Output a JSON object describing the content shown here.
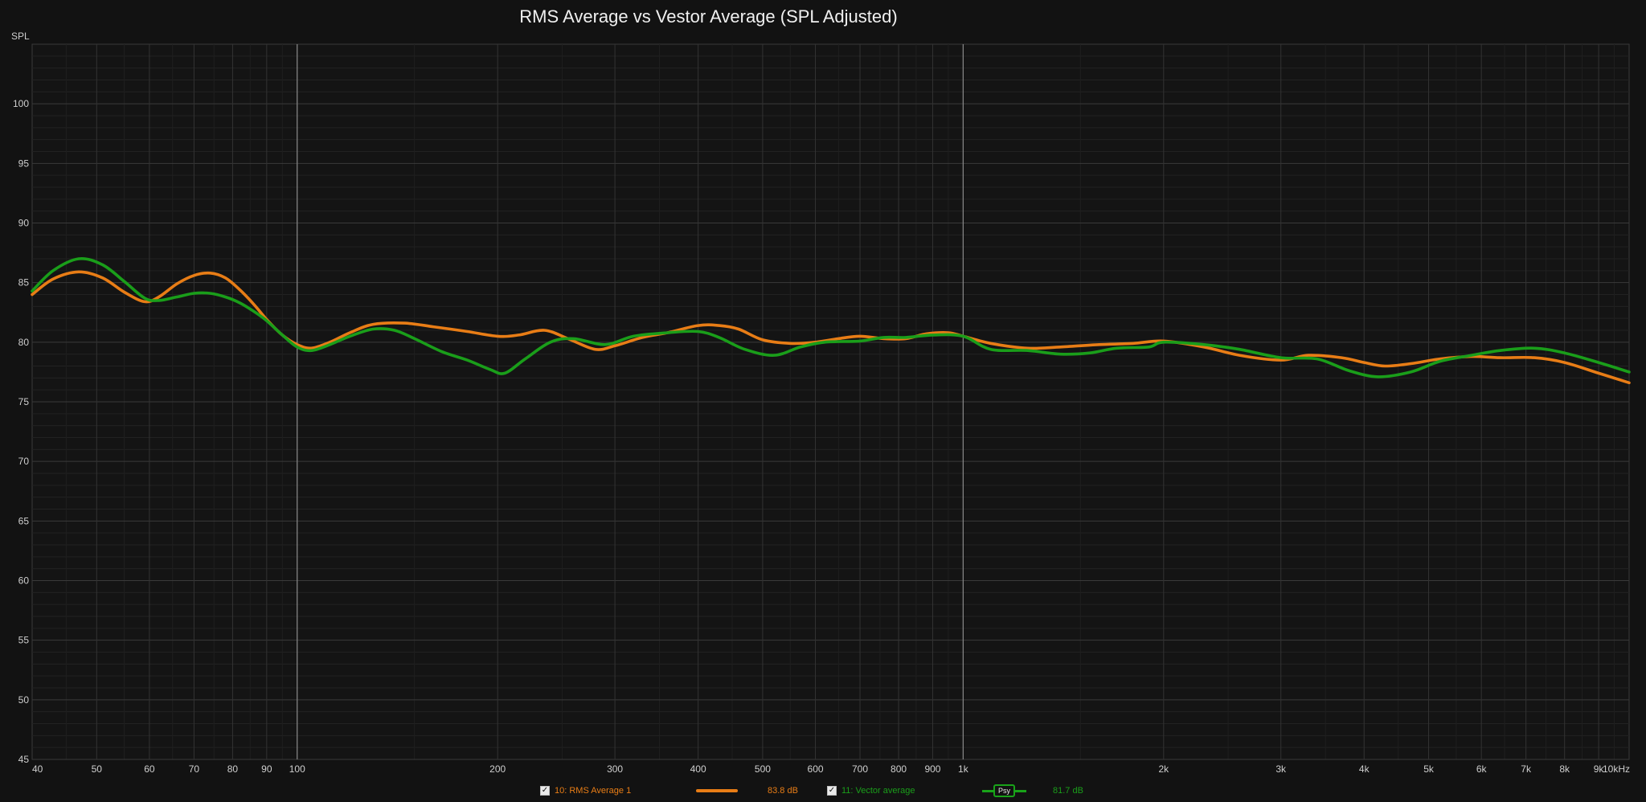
{
  "chart_data": {
    "type": "line",
    "title": "RMS Average vs Vestor Average (SPL Adjusted)",
    "ylabel": "SPL",
    "xscale": "log",
    "xlim": [
      40,
      10000
    ],
    "ylim": [
      45,
      105
    ],
    "grid": true,
    "yticks": [
      100,
      95,
      90,
      85,
      80,
      75,
      70,
      65,
      60,
      55,
      50,
      45
    ],
    "xticks": [
      {
        "v": 40,
        "label": "40"
      },
      {
        "v": 50,
        "label": "50"
      },
      {
        "v": 60,
        "label": "60"
      },
      {
        "v": 70,
        "label": "70"
      },
      {
        "v": 80,
        "label": "80"
      },
      {
        "v": 90,
        "label": "90"
      },
      {
        "v": 100,
        "label": "100"
      },
      {
        "v": 200,
        "label": "200"
      },
      {
        "v": 300,
        "label": "300"
      },
      {
        "v": 400,
        "label": "400"
      },
      {
        "v": 500,
        "label": "500"
      },
      {
        "v": 600,
        "label": "600"
      },
      {
        "v": 700,
        "label": "700"
      },
      {
        "v": 800,
        "label": "800"
      },
      {
        "v": 900,
        "label": "900"
      },
      {
        "v": 1000,
        "label": "1k"
      },
      {
        "v": 2000,
        "label": "2k"
      },
      {
        "v": 3000,
        "label": "3k"
      },
      {
        "v": 4000,
        "label": "4k"
      },
      {
        "v": 5000,
        "label": "5k"
      },
      {
        "v": 6000,
        "label": "6k"
      },
      {
        "v": 7000,
        "label": "7k"
      },
      {
        "v": 8000,
        "label": "8k"
      },
      {
        "v": 9000,
        "label": "9k"
      },
      {
        "v": 10000,
        "label": "10kHz"
      }
    ],
    "series": [
      {
        "name": "10: RMS Average 1",
        "color": "#e87d16",
        "points": [
          [
            40,
            84.0
          ],
          [
            43,
            85.3
          ],
          [
            47,
            85.9
          ],
          [
            51,
            85.4
          ],
          [
            55,
            84.2
          ],
          [
            59,
            83.4
          ],
          [
            62,
            83.8
          ],
          [
            66,
            84.9
          ],
          [
            70,
            85.6
          ],
          [
            74,
            85.8
          ],
          [
            78,
            85.4
          ],
          [
            82,
            84.4
          ],
          [
            86,
            83.2
          ],
          [
            90,
            81.9
          ],
          [
            95,
            80.6
          ],
          [
            100,
            79.8
          ],
          [
            105,
            79.5
          ],
          [
            112,
            80.0
          ],
          [
            120,
            80.8
          ],
          [
            130,
            81.5
          ],
          [
            145,
            81.6
          ],
          [
            160,
            81.3
          ],
          [
            180,
            80.9
          ],
          [
            200,
            80.5
          ],
          [
            215,
            80.6
          ],
          [
            235,
            81.0
          ],
          [
            255,
            80.3
          ],
          [
            280,
            79.4
          ],
          [
            300,
            79.7
          ],
          [
            330,
            80.4
          ],
          [
            360,
            80.8
          ],
          [
            400,
            81.4
          ],
          [
            430,
            81.4
          ],
          [
            460,
            81.1
          ],
          [
            500,
            80.2
          ],
          [
            550,
            79.9
          ],
          [
            600,
            80.0
          ],
          [
            650,
            80.3
          ],
          [
            700,
            80.5
          ],
          [
            760,
            80.3
          ],
          [
            820,
            80.3
          ],
          [
            880,
            80.7
          ],
          [
            950,
            80.8
          ],
          [
            1000,
            80.5
          ],
          [
            1100,
            79.9
          ],
          [
            1250,
            79.5
          ],
          [
            1400,
            79.6
          ],
          [
            1600,
            79.8
          ],
          [
            1800,
            79.9
          ],
          [
            2000,
            80.1
          ],
          [
            2300,
            79.6
          ],
          [
            2600,
            78.9
          ],
          [
            3000,
            78.5
          ],
          [
            3300,
            78.9
          ],
          [
            3700,
            78.7
          ],
          [
            4000,
            78.3
          ],
          [
            4300,
            78.0
          ],
          [
            4700,
            78.2
          ],
          [
            5200,
            78.6
          ],
          [
            5800,
            78.8
          ],
          [
            6400,
            78.7
          ],
          [
            7200,
            78.7
          ],
          [
            8000,
            78.3
          ],
          [
            9000,
            77.4
          ],
          [
            10000,
            76.6
          ]
        ]
      },
      {
        "name": "11: Vector average",
        "color": "#1a9e1a",
        "points": [
          [
            40,
            84.3
          ],
          [
            43,
            86.0
          ],
          [
            47,
            87.0
          ],
          [
            51,
            86.5
          ],
          [
            55,
            85.1
          ],
          [
            59,
            83.7
          ],
          [
            62,
            83.5
          ],
          [
            66,
            83.8
          ],
          [
            70,
            84.1
          ],
          [
            74,
            84.1
          ],
          [
            78,
            83.8
          ],
          [
            82,
            83.3
          ],
          [
            86,
            82.6
          ],
          [
            90,
            81.8
          ],
          [
            95,
            80.6
          ],
          [
            100,
            79.6
          ],
          [
            105,
            79.3
          ],
          [
            112,
            79.8
          ],
          [
            120,
            80.5
          ],
          [
            130,
            81.1
          ],
          [
            140,
            81.0
          ],
          [
            150,
            80.3
          ],
          [
            165,
            79.2
          ],
          [
            180,
            78.5
          ],
          [
            195,
            77.7
          ],
          [
            205,
            77.4
          ],
          [
            220,
            78.6
          ],
          [
            240,
            80.0
          ],
          [
            260,
            80.3
          ],
          [
            290,
            79.8
          ],
          [
            320,
            80.5
          ],
          [
            360,
            80.8
          ],
          [
            400,
            80.9
          ],
          [
            430,
            80.4
          ],
          [
            470,
            79.4
          ],
          [
            520,
            78.9
          ],
          [
            570,
            79.6
          ],
          [
            620,
            80.0
          ],
          [
            700,
            80.1
          ],
          [
            760,
            80.4
          ],
          [
            820,
            80.4
          ],
          [
            900,
            80.6
          ],
          [
            1000,
            80.5
          ],
          [
            1100,
            79.4
          ],
          [
            1250,
            79.3
          ],
          [
            1400,
            79.0
          ],
          [
            1550,
            79.1
          ],
          [
            1700,
            79.5
          ],
          [
            1900,
            79.6
          ],
          [
            2000,
            80.0
          ],
          [
            2300,
            79.8
          ],
          [
            2600,
            79.4
          ],
          [
            3000,
            78.7
          ],
          [
            3400,
            78.6
          ],
          [
            3800,
            77.6
          ],
          [
            4200,
            77.1
          ],
          [
            4700,
            77.5
          ],
          [
            5200,
            78.4
          ],
          [
            5800,
            78.9
          ],
          [
            6400,
            79.3
          ],
          [
            7200,
            79.5
          ],
          [
            8000,
            79.1
          ],
          [
            9000,
            78.3
          ],
          [
            10000,
            77.5
          ]
        ]
      }
    ],
    "cursor_lines_hz": [
      100,
      1000
    ]
  },
  "legend": {
    "items": [
      {
        "label": "10: RMS Average 1",
        "value": "83.8 dB",
        "color": "#e87d16",
        "check": "✓"
      },
      {
        "label": "11: Vector average",
        "value": "81.7 dB",
        "color": "#1a9e1a",
        "check": "✓",
        "badge": "Psy"
      }
    ]
  }
}
